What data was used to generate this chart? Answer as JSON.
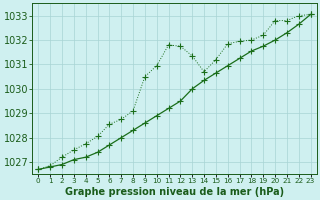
{
  "x": [
    0,
    1,
    2,
    3,
    4,
    5,
    6,
    7,
    8,
    9,
    10,
    11,
    12,
    13,
    14,
    15,
    16,
    17,
    18,
    19,
    20,
    21,
    22,
    23
  ],
  "line_dotted": [
    1026.7,
    1026.85,
    1027.2,
    1027.5,
    1027.75,
    1028.05,
    1028.55,
    1028.75,
    1029.1,
    1030.5,
    1030.95,
    1031.8,
    1031.75,
    1031.35,
    1030.7,
    1031.2,
    1031.85,
    1031.95,
    1032.0,
    1032.2,
    1032.8,
    1032.8,
    1033.0,
    1033.05
  ],
  "line_solid": [
    1026.7,
    1026.8,
    1026.9,
    1027.1,
    1027.2,
    1027.4,
    1027.7,
    1028.0,
    1028.3,
    1028.6,
    1028.9,
    1029.2,
    1029.5,
    1030.0,
    1030.35,
    1030.65,
    1030.95,
    1031.25,
    1031.55,
    1031.75,
    1032.0,
    1032.3,
    1032.65,
    1033.05
  ],
  "bg_color": "#cff0f0",
  "grid_color": "#a8d4d4",
  "line_color": "#1a6e1a",
  "tick_color": "#1a5c1a",
  "label_color": "#1a5c1a",
  "ylim": [
    1026.5,
    1033.5
  ],
  "yticks": [
    1027,
    1028,
    1029,
    1030,
    1031,
    1032,
    1033
  ],
  "xlabel": "Graphe pression niveau de la mer (hPa)",
  "axis_fontsize": 7,
  "marker_size": 2.5
}
